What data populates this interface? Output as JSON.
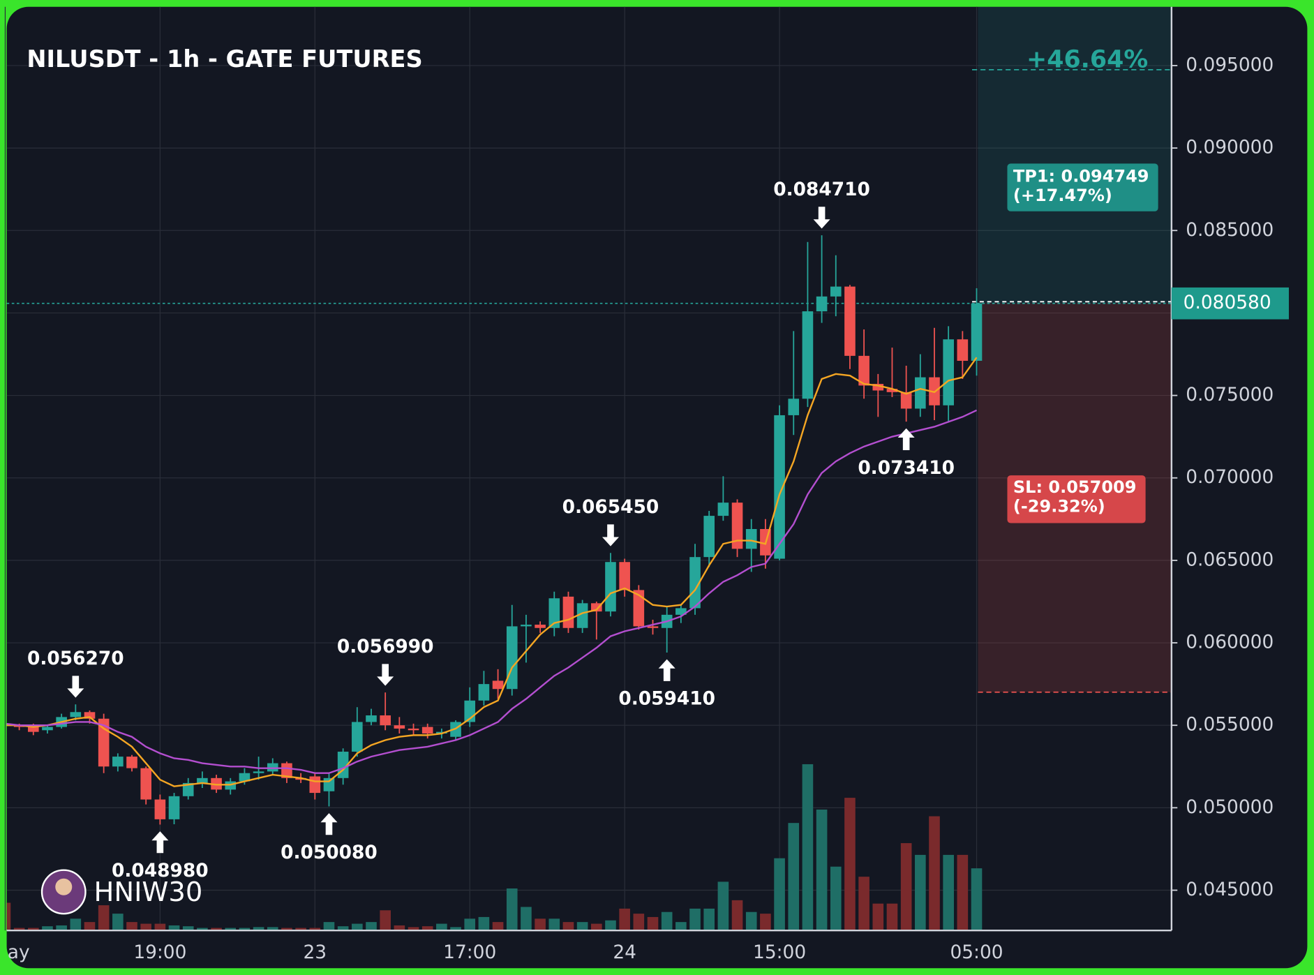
{
  "chart_data": {
    "type": "candlestick",
    "title": "NILUSDT - 1h - GATE FUTURES",
    "watermark": "HNIW30",
    "categories": [
      "ay",
      null,
      null,
      null,
      null,
      null,
      null,
      null,
      null,
      null,
      null,
      "19:00",
      null,
      null,
      null,
      null,
      null,
      null,
      null,
      null,
      null,
      null,
      "23",
      null,
      null,
      null,
      null,
      null,
      null,
      null,
      null,
      null,
      null,
      "17:00",
      null,
      null,
      null,
      null,
      null,
      null,
      null,
      null,
      null,
      null,
      "24",
      null,
      null,
      null,
      null,
      null,
      null,
      null,
      null,
      null,
      null,
      "15:00",
      null,
      null,
      null,
      null,
      null,
      null,
      null,
      null,
      null,
      null,
      null,
      null,
      null,
      "05:00"
    ],
    "open": [
      0.0551,
      0.055,
      0.055,
      0.0547,
      0.0549,
      0.0555,
      0.0558,
      0.0554,
      0.0525,
      0.0531,
      0.0524,
      0.0505,
      0.0493,
      0.0507,
      0.0515,
      0.0518,
      0.0511,
      0.0516,
      0.0521,
      0.0522,
      0.0527,
      0.0518,
      0.0519,
      0.051,
      0.0518,
      0.0534,
      0.0552,
      0.0556,
      0.055,
      0.0548,
      0.0549,
      0.0545,
      0.0543,
      0.0552,
      0.0565,
      0.0577,
      0.0572,
      0.061,
      0.0611,
      0.0609,
      0.0628,
      0.0609,
      0.0624,
      0.0619,
      0.0649,
      0.0632,
      0.061,
      0.0609,
      0.0617,
      0.0621,
      0.0652,
      0.0677,
      0.0685,
      0.0657,
      0.0669,
      0.0651,
      0.0738,
      0.0748,
      0.0801,
      0.081,
      0.0816,
      0.0774,
      0.0757,
      0.0754,
      0.0752,
      0.0742,
      0.0761,
      0.0744,
      0.0784,
      0.0771
    ],
    "high": [
      0.0553,
      0.0551,
      0.0551,
      0.055,
      0.0557,
      0.05627,
      0.0559,
      0.0557,
      0.0533,
      0.0532,
      0.0525,
      0.0508,
      0.0509,
      0.0518,
      0.0522,
      0.052,
      0.0518,
      0.0524,
      0.0531,
      0.053,
      0.0528,
      0.0521,
      0.0521,
      0.0521,
      0.0536,
      0.0561,
      0.056,
      0.05699,
      0.0555,
      0.0551,
      0.0551,
      0.0548,
      0.0553,
      0.0573,
      0.0583,
      0.0584,
      0.0623,
      0.0617,
      0.0613,
      0.0631,
      0.0631,
      0.0626,
      0.0625,
      0.06545,
      0.0651,
      0.0635,
      0.0614,
      0.0622,
      0.0623,
      0.066,
      0.068,
      0.0701,
      0.0687,
      0.0675,
      0.0675,
      0.0744,
      0.0789,
      0.0843,
      0.08471,
      0.0835,
      0.0817,
      0.079,
      0.0763,
      0.0779,
      0.0768,
      0.0775,
      0.0791,
      0.0792,
      0.0789,
      0.0815
    ],
    "low": [
      0.0549,
      0.0547,
      0.0544,
      0.0545,
      0.0548,
      0.0553,
      0.0551,
      0.0521,
      0.0522,
      0.0522,
      0.0502,
      0.04898,
      0.049,
      0.0505,
      0.0512,
      0.0509,
      0.0508,
      0.0514,
      0.0517,
      0.052,
      0.0515,
      0.0515,
      0.0505,
      0.05008,
      0.0514,
      0.0531,
      0.055,
      0.0547,
      0.0545,
      0.0544,
      0.0542,
      0.0542,
      0.0541,
      0.0549,
      0.0562,
      0.0566,
      0.0568,
      0.0588,
      0.0606,
      0.0604,
      0.0606,
      0.0606,
      0.0602,
      0.0616,
      0.0628,
      0.0608,
      0.0605,
      0.05941,
      0.0612,
      0.0617,
      0.0646,
      0.0674,
      0.0652,
      0.0643,
      0.0645,
      0.065,
      0.0726,
      0.0743,
      0.0794,
      0.0798,
      0.0766,
      0.0748,
      0.0737,
      0.0749,
      0.07341,
      0.0737,
      0.0735,
      0.0734,
      0.076,
      0.0762
    ],
    "close": [
      0.055,
      0.0549,
      0.0546,
      0.0549,
      0.0555,
      0.0558,
      0.0554,
      0.0525,
      0.0531,
      0.0524,
      0.0505,
      0.0493,
      0.0507,
      0.0515,
      0.0518,
      0.0511,
      0.0516,
      0.0521,
      0.0522,
      0.0527,
      0.0518,
      0.0517,
      0.0509,
      0.0518,
      0.0534,
      0.0552,
      0.0556,
      0.055,
      0.0548,
      0.0547,
      0.0545,
      0.0546,
      0.0552,
      0.0565,
      0.0575,
      0.0572,
      0.061,
      0.0611,
      0.0609,
      0.0627,
      0.0609,
      0.0624,
      0.0619,
      0.0649,
      0.0632,
      0.061,
      0.0609,
      0.0617,
      0.0621,
      0.0652,
      0.0677,
      0.0685,
      0.0657,
      0.0669,
      0.0653,
      0.0738,
      0.0748,
      0.0801,
      0.081,
      0.0816,
      0.0774,
      0.0756,
      0.0753,
      0.0752,
      0.0742,
      0.0761,
      0.0744,
      0.0784,
      0.0771,
      0.08058
    ],
    "volume": [
      33,
      3,
      3,
      5,
      6,
      14,
      10,
      30,
      20,
      10,
      8,
      8,
      6,
      5,
      3,
      3,
      3,
      3,
      4,
      4,
      3,
      3,
      3,
      10,
      5,
      8,
      10,
      24,
      6,
      4,
      5,
      8,
      4,
      14,
      16,
      10,
      50,
      28,
      14,
      14,
      10,
      10,
      8,
      12,
      26,
      20,
      16,
      22,
      10,
      26,
      26,
      58,
      36,
      22,
      20,
      86,
      128,
      198,
      144,
      76,
      158,
      64,
      32,
      32,
      104,
      90,
      136,
      90,
      90,
      74
    ],
    "volume_ylim": [
      0,
      1100
    ],
    "overlays": [
      {
        "color": "#f5a623",
        "values": [
          0.055,
          0.055,
          0.0549,
          0.055,
          0.0552,
          0.0554,
          0.0555,
          0.0548,
          0.0543,
          0.0537,
          0.0527,
          0.0517,
          0.0513,
          0.0514,
          0.0515,
          0.0514,
          0.0514,
          0.0516,
          0.0518,
          0.052,
          0.0519,
          0.0518,
          0.0516,
          0.0516,
          0.0523,
          0.0533,
          0.0538,
          0.0541,
          0.0543,
          0.0544,
          0.0544,
          0.0545,
          0.0548,
          0.0554,
          0.0561,
          0.0565,
          0.0585,
          0.0595,
          0.0605,
          0.0612,
          0.0614,
          0.0618,
          0.062,
          0.063,
          0.0633,
          0.0629,
          0.0623,
          0.0622,
          0.0623,
          0.0632,
          0.0647,
          0.066,
          0.0662,
          0.0662,
          0.066,
          0.069,
          0.071,
          0.0738,
          0.076,
          0.0763,
          0.0762,
          0.0757,
          0.0756,
          0.0754,
          0.0751,
          0.0754,
          0.0752,
          0.0759,
          0.0761,
          0.0773
        ]
      },
      {
        "color": "#b44fd0",
        "values": [
          0.0551,
          0.055,
          0.055,
          0.055,
          0.0551,
          0.0552,
          0.0552,
          0.055,
          0.0546,
          0.0543,
          0.0537,
          0.0533,
          0.053,
          0.0529,
          0.0527,
          0.0526,
          0.0525,
          0.0525,
          0.0524,
          0.0524,
          0.0524,
          0.0523,
          0.0521,
          0.0521,
          0.0524,
          0.0528,
          0.0531,
          0.0533,
          0.0535,
          0.0536,
          0.0537,
          0.0539,
          0.0541,
          0.0544,
          0.0548,
          0.0552,
          0.056,
          0.0566,
          0.0573,
          0.058,
          0.0585,
          0.0591,
          0.0597,
          0.0604,
          0.0607,
          0.0609,
          0.0611,
          0.0613,
          0.0616,
          0.0622,
          0.063,
          0.0637,
          0.0641,
          0.0646,
          0.0648,
          0.066,
          0.0672,
          0.069,
          0.0703,
          0.071,
          0.0715,
          0.0719,
          0.0722,
          0.0725,
          0.0727,
          0.0729,
          0.0731,
          0.0734,
          0.0737,
          0.0741
        ]
      }
    ],
    "colors": {
      "up": "#26a69a",
      "down": "#ef5350"
    },
    "ylim": [
      0.04256,
      0.09846
    ],
    "yticks": [
      {
        "value": 0.045,
        "label": "0.045000"
      },
      {
        "value": 0.05,
        "label": "0.050000"
      },
      {
        "value": 0.055,
        "label": "0.055000"
      },
      {
        "value": 0.06,
        "label": "0.060000"
      },
      {
        "value": 0.065,
        "label": "0.065000"
      },
      {
        "value": 0.07,
        "label": "0.070000"
      },
      {
        "value": 0.075,
        "label": "0.075000"
      },
      {
        "value": 0.08,
        "label": "0.080000"
      },
      {
        "value": 0.085,
        "label": "0.085000"
      },
      {
        "value": 0.09,
        "label": "0.090000"
      },
      {
        "value": 0.095,
        "label": "0.095000"
      }
    ],
    "grid": true,
    "annotations": [
      {
        "x": 5,
        "value": 0.05627,
        "label": "0.056270"
      },
      {
        "x": 11,
        "value": 0.04898,
        "label": "0.048980"
      },
      {
        "x": 23,
        "value": 0.05008,
        "label": "0.050080"
      },
      {
        "x": 27,
        "value": 0.05699,
        "label": "0.056990"
      },
      {
        "x": 43,
        "value": 0.06545,
        "label": "0.065450"
      },
      {
        "x": 47,
        "value": 0.05941,
        "label": "0.059410"
      },
      {
        "x": 58,
        "value": 0.08471,
        "label": "0.084710"
      },
      {
        "x": 64,
        "value": 0.07341,
        "label": "0.073410"
      }
    ],
    "last_price": {
      "value": 0.08058,
      "label": "0.080580"
    },
    "take_profit": {
      "value": 0.094749,
      "label": "TP1: 0.094749",
      "change": "(+17.47%)"
    },
    "stop_loss": {
      "value": 0.057009,
      "label": "SL: 0.057009",
      "change": "(-29.32%)"
    },
    "target_gain": "+46.64%"
  }
}
